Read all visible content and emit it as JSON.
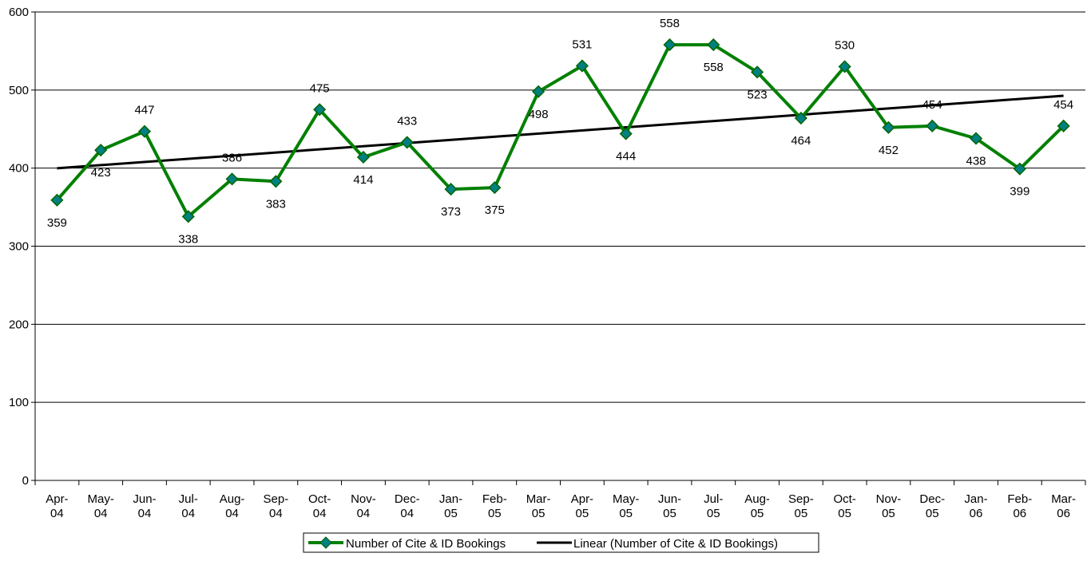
{
  "chart_data": {
    "type": "line",
    "categories": [
      "Apr-04",
      "May-04",
      "Jun-04",
      "Jul-04",
      "Aug-04",
      "Sep-04",
      "Oct-04",
      "Nov-04",
      "Dec-04",
      "Jan-05",
      "Feb-05",
      "Mar-05",
      "Apr-05",
      "May-05",
      "Jun-05",
      "Jul-05",
      "Aug-05",
      "Sep-05",
      "Oct-05",
      "Nov-05",
      "Dec-05",
      "Jan-06",
      "Feb-06",
      "Mar-06"
    ],
    "series": [
      {
        "name": "Number of Cite & ID Bookings",
        "color": "#008000",
        "marker_color": "#008080",
        "values": [
          359,
          423,
          447,
          338,
          386,
          383,
          475,
          414,
          433,
          373,
          375,
          498,
          531,
          444,
          558,
          558,
          523,
          464,
          530,
          452,
          454,
          438,
          399,
          454
        ]
      }
    ],
    "trendline": {
      "name": "Linear (Number of Cite & ID Bookings)",
      "color": "#000000",
      "kind": "linear"
    },
    "ylim": [
      0,
      600
    ],
    "yticks": [
      0,
      100,
      200,
      300,
      400,
      500,
      600
    ],
    "grid": true,
    "legend": "bottom"
  }
}
